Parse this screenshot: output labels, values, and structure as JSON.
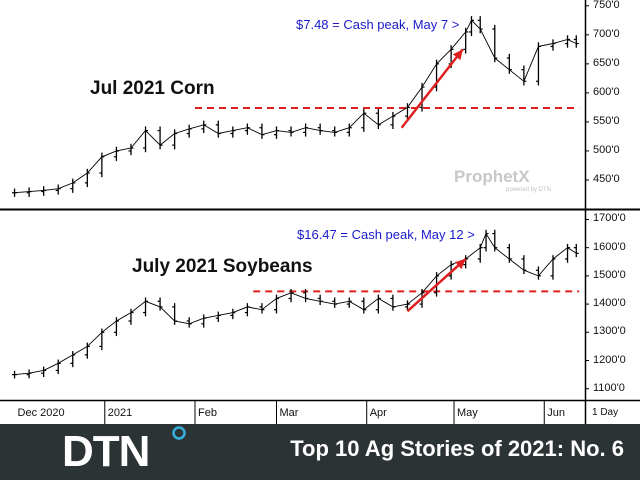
{
  "chart_data": [
    {
      "type": "ohlc",
      "title": "Jul 2021 Corn",
      "annotation": "$7.48 = Cash peak, May 7 >",
      "y_ticks": [
        "450'0",
        "500'0",
        "550'0",
        "600'0",
        "650'0",
        "700'0",
        "750'0"
      ],
      "ylim": [
        400,
        760
      ],
      "reference_line": {
        "value": 574,
        "style": "dashed",
        "color": "#e02020",
        "from": "2021-02-01",
        "to": "2021-06-13"
      },
      "trend_arrow": {
        "from": {
          "date": "2021-04-13",
          "value": 540
        },
        "to": {
          "date": "2021-05-04",
          "value": 675
        },
        "color": "#e02020"
      },
      "series": {
        "dates": [
          "2020-12-01",
          "2020-12-06",
          "2020-12-11",
          "2020-12-16",
          "2020-12-21",
          "2020-12-26",
          "2020-12-31",
          "2021-01-05",
          "2021-01-10",
          "2021-01-15",
          "2021-01-20",
          "2021-01-25",
          "2021-01-30",
          "2021-02-04",
          "2021-02-09",
          "2021-02-14",
          "2021-02-19",
          "2021-02-24",
          "2021-03-01",
          "2021-03-06",
          "2021-03-11",
          "2021-03-16",
          "2021-03-21",
          "2021-03-26",
          "2021-03-31",
          "2021-04-05",
          "2021-04-10",
          "2021-04-15",
          "2021-04-20",
          "2021-04-25",
          "2021-04-30",
          "2021-05-05",
          "2021-05-07",
          "2021-05-10",
          "2021-05-15",
          "2021-05-20",
          "2021-05-25",
          "2021-05-30",
          "2021-06-04",
          "2021-06-09",
          "2021-06-12"
        ],
        "close": [
          428,
          430,
          432,
          435,
          445,
          462,
          490,
          500,
          505,
          535,
          510,
          530,
          538,
          545,
          530,
          535,
          540,
          528,
          535,
          532,
          540,
          535,
          532,
          540,
          565,
          545,
          560,
          575,
          610,
          650,
          675,
          705,
          725,
          710,
          660,
          640,
          620,
          680,
          685,
          692,
          685
        ]
      }
    },
    {
      "type": "ohlc",
      "title": "July 2021 Soybeans",
      "annotation": "$16.47 = Cash peak, May 12 >",
      "y_ticks": [
        "1100'0",
        "1200'0",
        "1300'0",
        "1400'0",
        "1500'0",
        "1600'0",
        "1700'0"
      ],
      "ylim": [
        1060,
        1730
      ],
      "reference_line": {
        "value": 1445,
        "style": "dashed",
        "color": "#e02020",
        "from": "2021-02-21",
        "to": "2021-06-13"
      },
      "trend_arrow": {
        "from": {
          "date": "2021-04-15",
          "value": 1375
        },
        "to": {
          "date": "2021-05-05",
          "value": 1560
        },
        "color": "#e02020"
      },
      "series": {
        "dates": [
          "2020-12-01",
          "2020-12-06",
          "2020-12-11",
          "2020-12-16",
          "2020-12-21",
          "2020-12-26",
          "2020-12-31",
          "2021-01-05",
          "2021-01-10",
          "2021-01-15",
          "2021-01-20",
          "2021-01-25",
          "2021-01-30",
          "2021-02-04",
          "2021-02-09",
          "2021-02-14",
          "2021-02-19",
          "2021-02-24",
          "2021-03-01",
          "2021-03-06",
          "2021-03-11",
          "2021-03-16",
          "2021-03-21",
          "2021-03-26",
          "2021-03-31",
          "2021-04-05",
          "2021-04-10",
          "2021-04-15",
          "2021-04-20",
          "2021-04-25",
          "2021-04-30",
          "2021-05-05",
          "2021-05-10",
          "2021-05-12",
          "2021-05-15",
          "2021-05-20",
          "2021-05-25",
          "2021-05-30",
          "2021-06-04",
          "2021-06-09",
          "2021-06-12"
        ],
        "close": [
          1150,
          1155,
          1165,
          1190,
          1220,
          1250,
          1300,
          1340,
          1370,
          1410,
          1390,
          1340,
          1330,
          1350,
          1360,
          1370,
          1390,
          1380,
          1420,
          1440,
          1420,
          1410,
          1400,
          1410,
          1380,
          1420,
          1390,
          1400,
          1440,
          1500,
          1540,
          1560,
          1600,
          1650,
          1600,
          1560,
          1520,
          1500,
          1560,
          1600,
          1580
        ]
      }
    }
  ],
  "x_axis": {
    "labels": [
      {
        "text": "Dec 2020",
        "date": "2020-12-01"
      },
      {
        "text": "2021",
        "date": "2021-01-01"
      },
      {
        "text": "Feb",
        "date": "2021-02-01"
      },
      {
        "text": "Mar",
        "date": "2021-03-01"
      },
      {
        "text": "Apr",
        "date": "2021-04-01"
      },
      {
        "text": "May",
        "date": "2021-05-01"
      },
      {
        "text": "Jun",
        "date": "2021-06-01"
      }
    ],
    "period": "1 Day"
  },
  "watermark": {
    "brand": "ProphetX",
    "tagline": "powered by DTN"
  },
  "colors": {
    "bars": "#000000",
    "reference": "#e02020",
    "annotation": "#1a1acc",
    "banner": "#2c3335",
    "logo_accent": "#35b0e0"
  },
  "banner": {
    "logo": "DTN",
    "title": "Top 10 Ag Stories of 2021: No. 6"
  }
}
